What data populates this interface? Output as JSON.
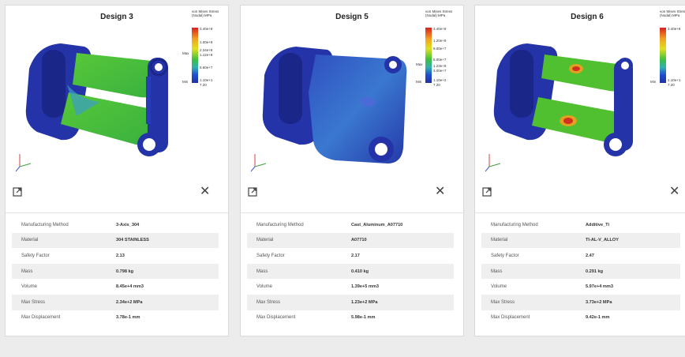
{
  "cards": [
    {
      "title": "Design 3",
      "legend": {
        "title": "von Mises Stress (Nodal) MPa",
        "values": [
          "3.40e+8",
          "1.00e+8",
          "2.34e+8",
          "1.12e+8",
          "5.60e+7",
          "1.10e+1",
          "7.20"
        ],
        "max_label": "Max",
        "min_label": "Min"
      },
      "properties": [
        {
          "label": "Manufacturing Method",
          "value": "3-Axis_304"
        },
        {
          "label": "Material",
          "value": "304 STAINLESS"
        },
        {
          "label": "Safety Factor",
          "value": "2.13"
        },
        {
          "label": "Mass",
          "value": "0.798 kg"
        },
        {
          "label": "Volume",
          "value": "8.45e+4 mm3"
        },
        {
          "label": "Max Stress",
          "value": "2.34e+2 MPa"
        },
        {
          "label": "Max Displacement",
          "value": "3.78e-1 mm"
        }
      ]
    },
    {
      "title": "Design 5",
      "legend": {
        "title": "von Mises Stress (Nodal) MPa",
        "values": [
          "3.40e+8",
          "1.20e+8",
          "9.00e+7",
          "6.00e+7",
          "1.23e+8",
          "3.00e+7",
          "1.10e+2",
          "7.20"
        ],
        "max_label": "Max",
        "min_label": "Min"
      },
      "properties": [
        {
          "label": "Manufacturing Method",
          "value": "Cast_Aluminum_A07710"
        },
        {
          "label": "Material",
          "value": "A07710"
        },
        {
          "label": "Safety Factor",
          "value": "2.17"
        },
        {
          "label": "Mass",
          "value": "0.410 kg"
        },
        {
          "label": "Volume",
          "value": "1.39e+5 mm3"
        },
        {
          "label": "Max Stress",
          "value": "1.23e+2 MPa"
        },
        {
          "label": "Max Displacement",
          "value": "5.98e-1 mm"
        }
      ]
    },
    {
      "title": "Design 6",
      "legend": {
        "title": "von Mises Stress (Nodal) MPa",
        "values": [
          "3.40e+8",
          "1.10e+1",
          "7.20"
        ],
        "max_label": "",
        "min_label": "Min"
      },
      "properties": [
        {
          "label": "Manufacturing Method",
          "value": "Additive_Ti"
        },
        {
          "label": "Material",
          "value": "TI-AL-V_ALLOY"
        },
        {
          "label": "Safety Factor",
          "value": "2.47"
        },
        {
          "label": "Mass",
          "value": "0.291 kg"
        },
        {
          "label": "Volume",
          "value": "5.97e+4 mm3"
        },
        {
          "label": "Max Stress",
          "value": "3.73e+2 MPa"
        },
        {
          "label": "Max Displacement",
          "value": "9.42e-1 mm"
        }
      ]
    }
  ],
  "icons": {
    "expand": "expand-icon",
    "close": "close-icon",
    "axes": "axis-triad-icon"
  },
  "colors": {
    "base_blue": "#2b3aa0",
    "stress_green": "#4cc030",
    "stress_red": "#d83020"
  }
}
